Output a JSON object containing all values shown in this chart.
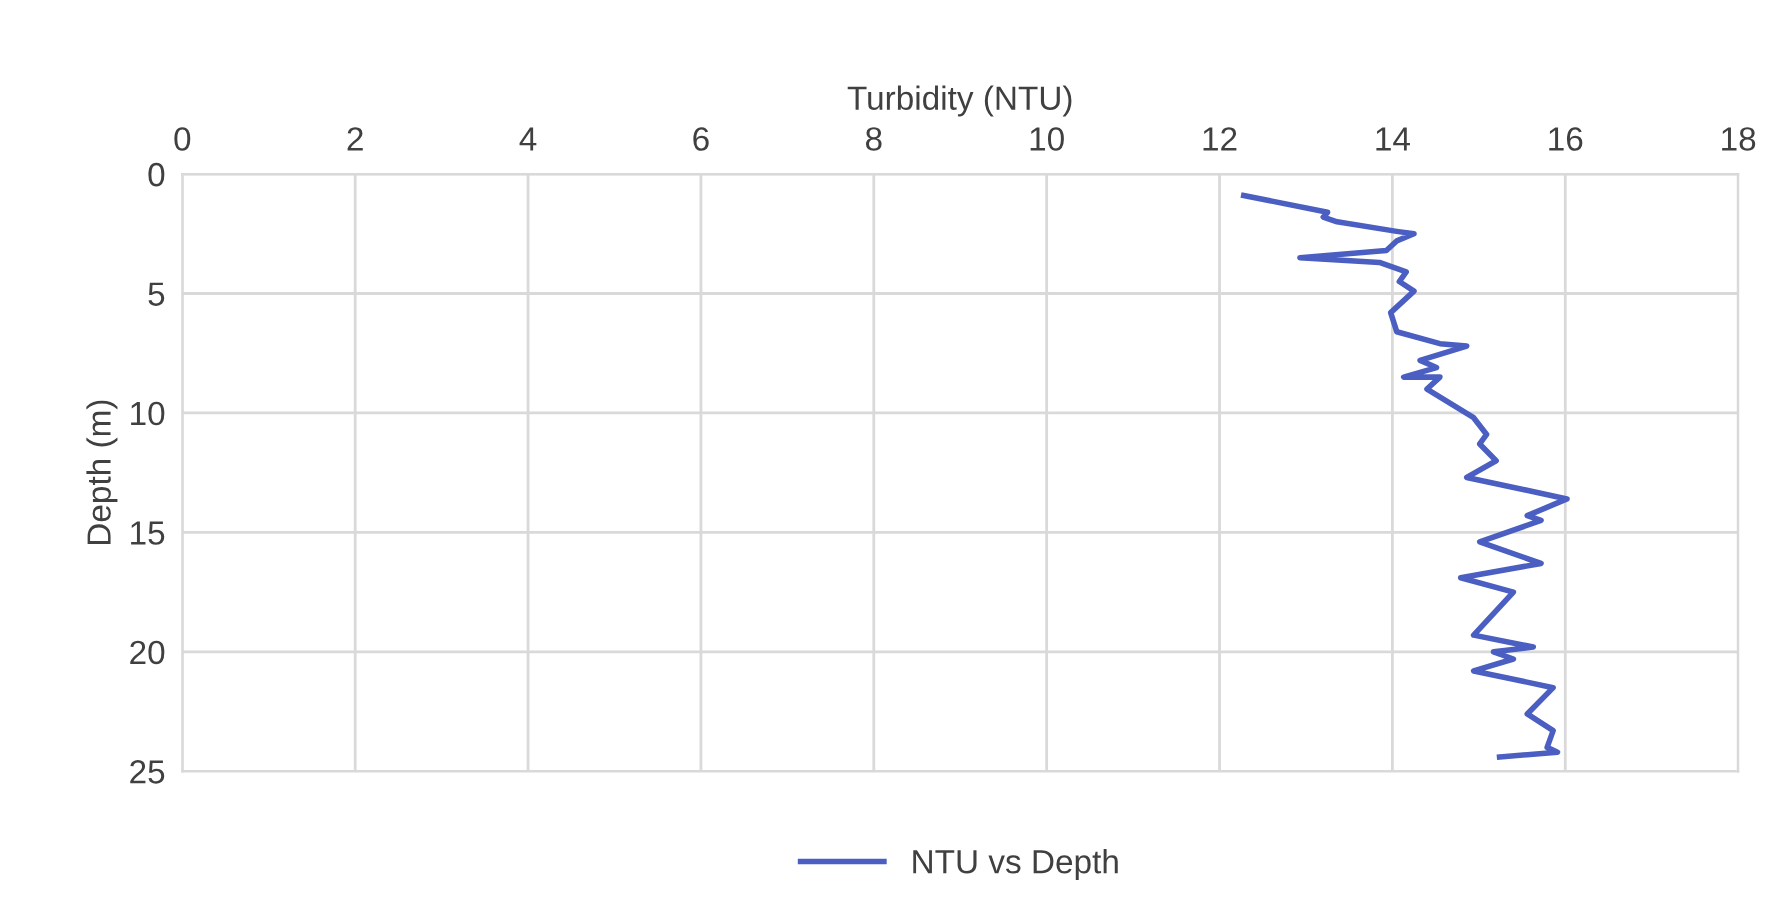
{
  "chart_data": {
    "type": "line",
    "xlabel": "Turbidity (NTU)",
    "ylabel": "Depth (m)",
    "xlim": [
      0,
      18
    ],
    "xticks": [
      0,
      2,
      4,
      6,
      8,
      10,
      12,
      14,
      16,
      18
    ],
    "ylim": [
      25,
      0
    ],
    "yticks": [
      0,
      5,
      10,
      15,
      20,
      25
    ],
    "grid": true,
    "legend": "bottom",
    "marker": "none",
    "line_style": "solid",
    "series": [
      {
        "name": "NTU vs Depth",
        "color": "#4a5fc1",
        "x": [
          12.28,
          13.25,
          13.2,
          13.36,
          14.05,
          14.25,
          14.05,
          13.93,
          12.93,
          13.85,
          14.16,
          14.08,
          14.25,
          13.98,
          14.05,
          14.55,
          14.86,
          14.32,
          14.51,
          14.13,
          14.55,
          14.4,
          14.94,
          15.09,
          15.01,
          15.2,
          14.86,
          16.02,
          15.56,
          15.72,
          15.01,
          15.72,
          14.79,
          15.4,
          14.94,
          15.63,
          15.17,
          15.4,
          14.94,
          15.86,
          15.56,
          15.86,
          15.79,
          15.91,
          15.24
        ],
        "values": [
          0.9,
          1.6,
          1.8,
          2.0,
          2.4,
          2.5,
          2.8,
          3.2,
          3.5,
          3.7,
          4.1,
          4.5,
          4.9,
          5.8,
          6.6,
          7.1,
          7.2,
          7.8,
          8.1,
          8.5,
          8.5,
          9.0,
          10.2,
          10.9,
          11.3,
          12.0,
          12.7,
          13.6,
          14.3,
          14.5,
          15.4,
          16.3,
          16.9,
          17.5,
          19.3,
          19.8,
          20.0,
          20.3,
          20.8,
          21.5,
          22.6,
          23.3,
          24.0,
          24.2,
          24.4
        ]
      }
    ]
  }
}
